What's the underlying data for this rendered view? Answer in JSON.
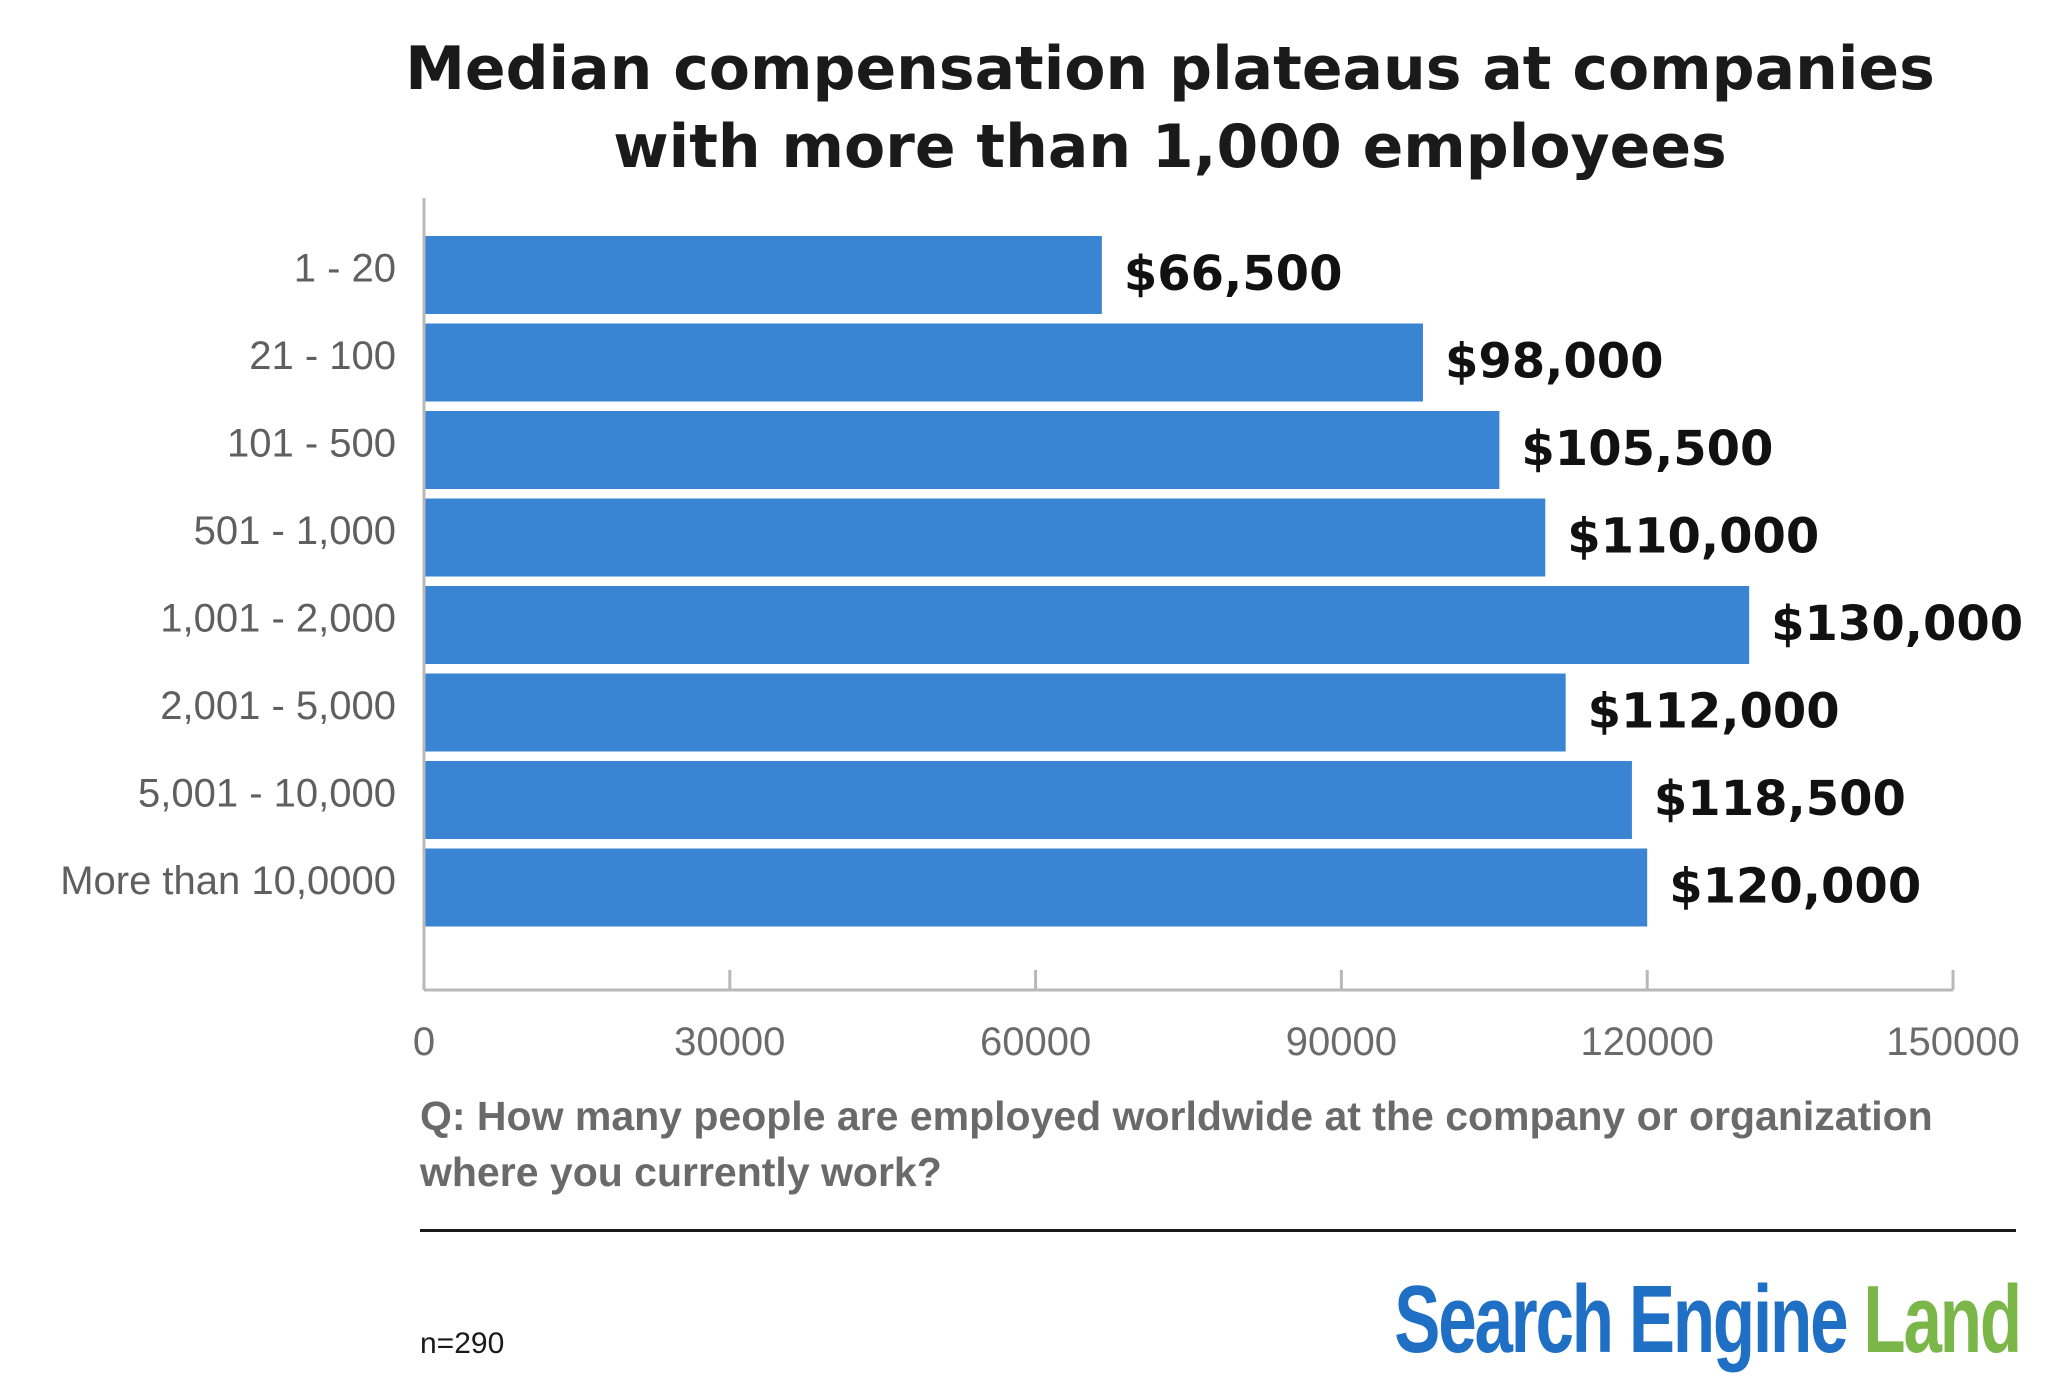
{
  "chart_data": {
    "type": "bar",
    "orientation": "horizontal",
    "title": "Median compensation plateaus at companies with more than 1,000 employees",
    "title_lines": [
      "Median compensation plateaus at companies",
      "with more than 1,000 employees"
    ],
    "categories": [
      "1 - 20",
      "21 - 100",
      "101 - 500",
      "501 - 1,000",
      "1,001 - 2,000",
      "2,001 - 5,000",
      "5,001 - 10,000",
      "More than 10,0000"
    ],
    "values": [
      66500,
      98000,
      105500,
      110000,
      130000,
      112000,
      118500,
      120000
    ],
    "data_labels": [
      "$66,500",
      "$98,000",
      "$105,500",
      "$110,000",
      "$130,000",
      "$112,000",
      "$118,500",
      "$120,000"
    ],
    "xlim": [
      0,
      150000
    ],
    "xticks": [
      0,
      30000,
      60000,
      90000,
      120000,
      150000
    ],
    "xtick_labels": [
      "0",
      "30000",
      "60000",
      "90000",
      "120000",
      "150000"
    ],
    "xlabel": "",
    "ylabel": "",
    "grid": false,
    "legend": "none",
    "bar_color": "#3a84d4"
  },
  "footer": {
    "question": "Q: How many people are employed worldwide at the company or organization where you currently work?",
    "sample_size": "n=290"
  },
  "logo": {
    "text_part1": "Search Engine",
    "text_part2": "Land",
    "color_primary": "#1f6fc5",
    "color_secondary": "#7ab648"
  }
}
